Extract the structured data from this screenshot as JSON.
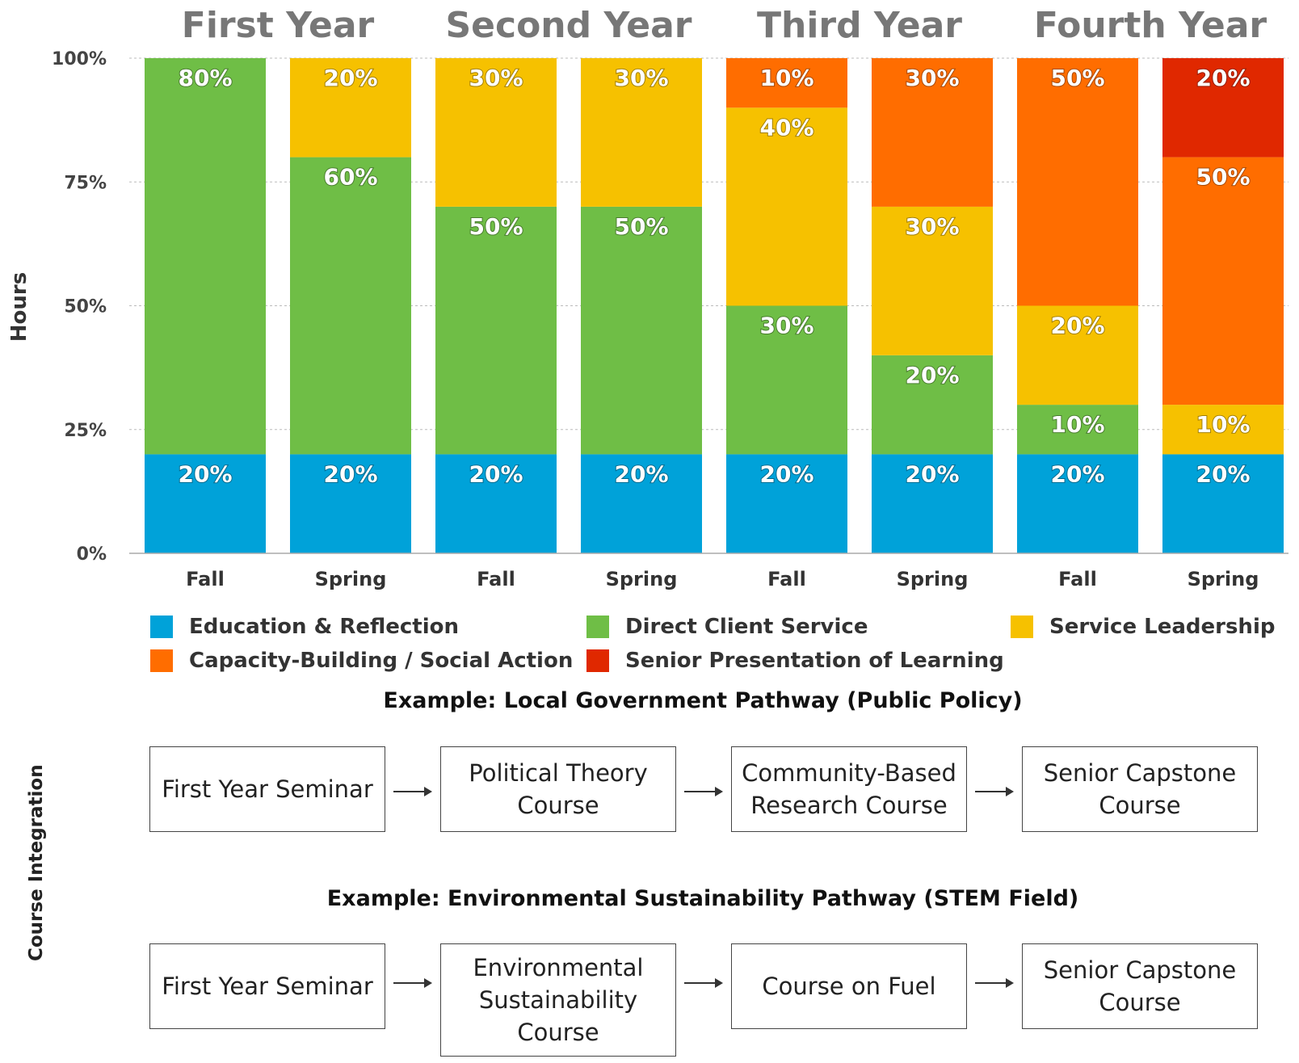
{
  "chart_data": {
    "type": "bar",
    "stacked": true,
    "ylabel": "Hours",
    "ylim": [
      0,
      100
    ],
    "yticks": [
      "0%",
      "25%",
      "50%",
      "75%",
      "100%"
    ],
    "ytick_values": [
      0,
      25,
      50,
      75,
      100
    ],
    "groups": [
      "First Year",
      "Second Year",
      "Third Year",
      "Fourth Year"
    ],
    "categories": [
      "Fall",
      "Spring",
      "Fall",
      "Spring",
      "Fall",
      "Spring",
      "Fall",
      "Spring"
    ],
    "grid": true,
    "legend_position": "bottom",
    "series": [
      {
        "name": "Education & Reflection",
        "color": "#00A2D9",
        "values": [
          20,
          20,
          20,
          20,
          20,
          20,
          20,
          20
        ],
        "labels": [
          "20%",
          "20%",
          "20%",
          "20%",
          "20%",
          "20%",
          "20%",
          "20%"
        ]
      },
      {
        "name": "Direct Client Service",
        "color": "#6FBE46",
        "values": [
          80,
          60,
          50,
          50,
          30,
          20,
          10,
          0
        ],
        "labels": [
          "80%",
          "60%",
          "50%",
          "50%",
          "30%",
          "20%",
          "10%",
          ""
        ]
      },
      {
        "name": "Service Leadership",
        "color": "#F6C100",
        "values": [
          0,
          20,
          30,
          30,
          40,
          30,
          20,
          10
        ],
        "labels": [
          "",
          "20%",
          "30%",
          "30%",
          "40%",
          "30%",
          "20%",
          "10%"
        ]
      },
      {
        "name": "Capacity-Building / Social Action",
        "color": "#FF6D00",
        "values": [
          0,
          0,
          0,
          0,
          10,
          30,
          50,
          50
        ],
        "labels": [
          "",
          "",
          "",
          "",
          "10%",
          "30%",
          "50%",
          "50%"
        ]
      },
      {
        "name": "Senior Presentation of Learning",
        "color": "#E02800",
        "values": [
          0,
          0,
          0,
          0,
          0,
          0,
          0,
          20
        ],
        "labels": [
          "",
          "",
          "",
          "",
          "",
          "",
          "",
          "20%"
        ]
      }
    ]
  },
  "course_integration": {
    "label": "Course Integration",
    "pathways": [
      {
        "title": "Example: Local Government Pathway (Public Policy)",
        "steps": [
          "First Year Seminar",
          "Political Theory Course",
          "Community-Based Research Course",
          "Senior Capstone Course"
        ]
      },
      {
        "title": "Example: Environmental Sustainability Pathway (STEM Field)",
        "steps": [
          "First Year Seminar",
          "Environmental Sustainability Course",
          "Course on Fuel",
          "Senior Capstone Course"
        ]
      }
    ]
  }
}
